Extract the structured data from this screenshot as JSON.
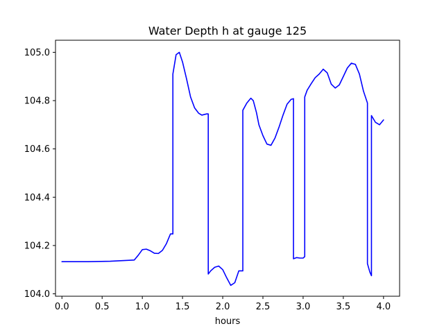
{
  "chart_data": {
    "type": "line",
    "title": "Water Depth h at gauge 125",
    "xlabel": "hours",
    "ylabel": "",
    "xlim": [
      -0.08,
      4.2
    ],
    "ylim": [
      103.99,
      105.05
    ],
    "xticks": [
      0.0,
      0.5,
      1.0,
      1.5,
      2.0,
      2.5,
      3.0,
      3.5,
      4.0
    ],
    "xtick_labels": [
      "0.0",
      "0.5",
      "1.0",
      "1.5",
      "2.0",
      "2.5",
      "3.0",
      "3.5",
      "4.0"
    ],
    "yticks": [
      104.0,
      104.2,
      104.4,
      104.6,
      104.8,
      105.0
    ],
    "ytick_labels": [
      "104.0",
      "104.2",
      "104.4",
      "104.6",
      "104.8",
      "105.0"
    ],
    "grid": false,
    "legend": "none",
    "line_color": "#0000ff",
    "series": [
      {
        "x": [
          0.0,
          0.3,
          0.6,
          0.9,
          0.95,
          1.0,
          1.05,
          1.1,
          1.15,
          1.2,
          1.25,
          1.3,
          1.35,
          1.38,
          1.38,
          1.42,
          1.46,
          1.5,
          1.55,
          1.6,
          1.65,
          1.7,
          1.74,
          1.8,
          1.82,
          1.82,
          1.85,
          1.9,
          1.95,
          2.0,
          2.05,
          2.1,
          2.15,
          2.2,
          2.25,
          2.25,
          2.3,
          2.35,
          2.38,
          2.42,
          2.45,
          2.5,
          2.55,
          2.6,
          2.65,
          2.7,
          2.75,
          2.8,
          2.85,
          2.88,
          2.88,
          2.92,
          2.96,
          3.0,
          3.02,
          3.02,
          3.05,
          3.1,
          3.15,
          3.2,
          3.25,
          3.3,
          3.35,
          3.4,
          3.45,
          3.5,
          3.55,
          3.6,
          3.65,
          3.7,
          3.75,
          3.8,
          3.8,
          3.83,
          3.85,
          3.85,
          3.9,
          3.95,
          4.0
        ],
        "y": [
          104.133,
          104.133,
          104.135,
          104.14,
          104.16,
          104.183,
          104.185,
          104.178,
          104.168,
          104.167,
          104.18,
          104.208,
          104.248,
          104.248,
          104.91,
          104.99,
          105.0,
          104.96,
          104.89,
          104.815,
          104.77,
          104.748,
          104.74,
          104.745,
          104.745,
          104.082,
          104.095,
          104.11,
          104.115,
          104.1,
          104.066,
          104.035,
          104.046,
          104.095,
          104.095,
          104.76,
          104.79,
          104.81,
          104.8,
          104.75,
          104.7,
          104.655,
          104.62,
          104.615,
          104.645,
          104.69,
          104.74,
          104.785,
          104.805,
          104.808,
          104.145,
          104.15,
          104.148,
          104.148,
          104.154,
          104.815,
          104.843,
          104.87,
          104.895,
          104.91,
          104.93,
          104.915,
          104.868,
          104.852,
          104.865,
          104.9,
          104.935,
          104.955,
          104.95,
          104.91,
          104.84,
          104.79,
          104.125,
          104.09,
          104.075,
          104.738,
          104.71,
          104.7,
          104.72
        ]
      }
    ]
  }
}
